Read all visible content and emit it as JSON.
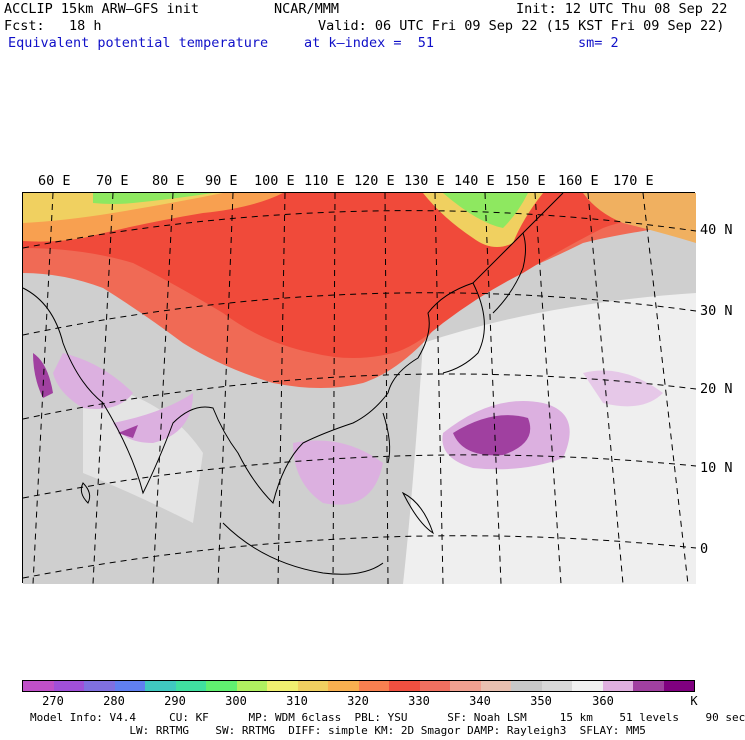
{
  "header": {
    "model": "ACCLIP 15km ARW–GFS init",
    "org": "NCAR/MMM",
    "init": "Init: 12 UTC Thu 08 Sep 22",
    "fcst": "Fcst:   18 h",
    "valid": "Valid: 06 UTC Fri 09 Sep 22 (15 KST Fri 09 Sep 22)",
    "field": "Equivalent potential temperature",
    "level": "at k–index =  51",
    "smooth": "sm= 2"
  },
  "map": {
    "lon_labels": [
      "60 E",
      "70 E",
      "80 E",
      "90 E",
      "100 E",
      "110 E",
      "120 E",
      "130 E",
      "140 E",
      "150 E",
      "160 E",
      "170 E"
    ],
    "lat_labels": [
      "40 N",
      "30 N",
      "20 N",
      "10 N",
      "0"
    ]
  },
  "colorbar": {
    "colors": [
      "#c050c8",
      "#a050d8",
      "#8070e0",
      "#6080f0",
      "#40c8c0",
      "#40e0a0",
      "#60f070",
      "#b0f060",
      "#f0f070",
      "#f0d060",
      "#f8b050",
      "#f88050",
      "#f05040",
      "#f07060",
      "#f0a090",
      "#e8c0b0",
      "#c8c8c8",
      "#d8d8d8",
      "#f0f0f0",
      "#e0b0e0",
      "#a040a0",
      "#800080"
    ],
    "tick_labels": [
      "270",
      "280",
      "290",
      "300",
      "310",
      "320",
      "330",
      "340",
      "350",
      "360",
      "K"
    ]
  },
  "footer": {
    "line1": "Model Info: V4.4     CU: KF      MP: WDM 6class  PBL: YSU      SF: Noah LSM     15 km    51 levels    90 sec",
    "line2": "               LW: RRTMG    SW: RRTMG  DIFF: simple KM: 2D Smagor DAMP: Rayleigh3  SFLAY: MM5"
  }
}
